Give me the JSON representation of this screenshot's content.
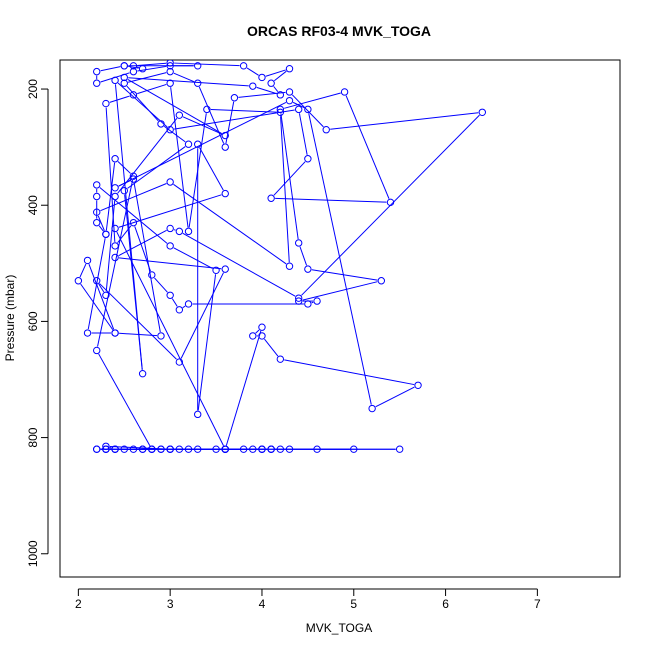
{
  "chart_data": {
    "type": "line",
    "title": "ORCAS RF03-4 MVK_TOGA",
    "xlabel": "MVK_TOGA",
    "ylabel": "Pressure (mbar)",
    "xlim": [
      1.8,
      7.9
    ],
    "ylim": [
      1040,
      150
    ],
    "x_ticks": [
      2,
      3,
      4,
      5,
      6,
      7
    ],
    "y_ticks": [
      200,
      400,
      600,
      800,
      1000
    ],
    "grid": false,
    "series_color": "#0000ff",
    "marker": "open-circle",
    "series": [
      {
        "x": [
          4.0,
          4.1,
          3.9,
          3.6,
          3.8,
          3.5,
          3.0,
          2.9,
          2.8,
          2.4,
          2.3,
          2.2,
          2.4,
          3.0,
          3.2,
          3.6,
          4.0,
          5.0,
          4.1,
          3.0,
          2.3,
          2.4,
          2.3,
          2.2,
          3.1,
          4.1,
          4.2,
          4.3,
          5.5,
          4.6,
          3.6,
          2.9,
          2.6,
          2.5,
          2.7,
          3.6,
          4.0,
          3.3,
          2.8,
          2.7,
          2.3,
          2.8,
          2.2,
          2.6,
          2.4,
          2.3,
          2.1,
          2.4,
          2.1,
          2.0,
          2.4,
          2.9,
          2.6,
          2.4,
          4.3,
          4.5,
          5.2,
          5.7,
          4.2,
          4.0,
          3.9,
          4.0,
          3.6,
          2.4,
          3.6,
          3.3,
          3.3,
          3.5,
          3.0,
          2.2,
          2.2,
          2.2,
          2.3,
          2.2,
          3.0,
          4.3,
          4.2,
          3.4,
          3.2,
          3.0,
          2.6,
          2.3,
          2.4,
          2.6,
          2.8,
          3.0,
          3.1,
          3.2,
          4.5,
          4.6,
          4.4,
          5.3,
          4.5,
          4.4,
          4.2,
          4.9,
          5.4,
          4.1,
          4.5,
          4.4,
          3.0,
          2.4,
          2.7,
          2.5,
          3.2,
          2.9,
          2.5,
          3.0,
          3.3,
          3.6,
          3.7,
          4.3,
          4.7,
          6.4,
          4.4,
          3.1,
          3.0,
          2.4,
          3.6,
          3.1,
          2.2,
          2.3,
          2.4,
          3.1,
          3.6,
          2.5,
          3.9,
          4.2,
          4.1,
          4.3,
          4.0,
          3.8,
          3.0,
          2.6,
          2.7,
          2.5,
          2.2,
          2.2,
          2.6,
          3.0,
          3.3,
          2.5
        ],
        "y": [
          820,
          820,
          820,
          820,
          820,
          820,
          820,
          820,
          820,
          820,
          820,
          820,
          820,
          820,
          820,
          820,
          820,
          820,
          820,
          820,
          815,
          820,
          820,
          820,
          820,
          820,
          820,
          820,
          820,
          820,
          820,
          820,
          820,
          820,
          820,
          820,
          820,
          820,
          820,
          820,
          820,
          820,
          650,
          350,
          320,
          450,
          620,
          620,
          495,
          530,
          620,
          625,
          355,
          370,
          220,
          235,
          750,
          710,
          665,
          625,
          625,
          610,
          820,
          440,
          380,
          295,
          760,
          512,
          470,
          365,
          385,
          430,
          450,
          412,
          360,
          505,
          240,
          235,
          445,
          190,
          210,
          225,
          470,
          430,
          520,
          555,
          580,
          570,
          570,
          565,
          565,
          530,
          510,
          465,
          235,
          205,
          395,
          388,
          320,
          235,
          270,
          185,
          690,
          375,
          295,
          260,
          190,
          170,
          190,
          300,
          215,
          205,
          270,
          240,
          560,
          445,
          440,
          490,
          510,
          670,
          530,
          555,
          385,
          245,
          280,
          180,
          195,
          210,
          190,
          165,
          180,
          160,
          155,
          160,
          165,
          160,
          170,
          190,
          170,
          160,
          160,
          160
        ]
      }
    ]
  }
}
